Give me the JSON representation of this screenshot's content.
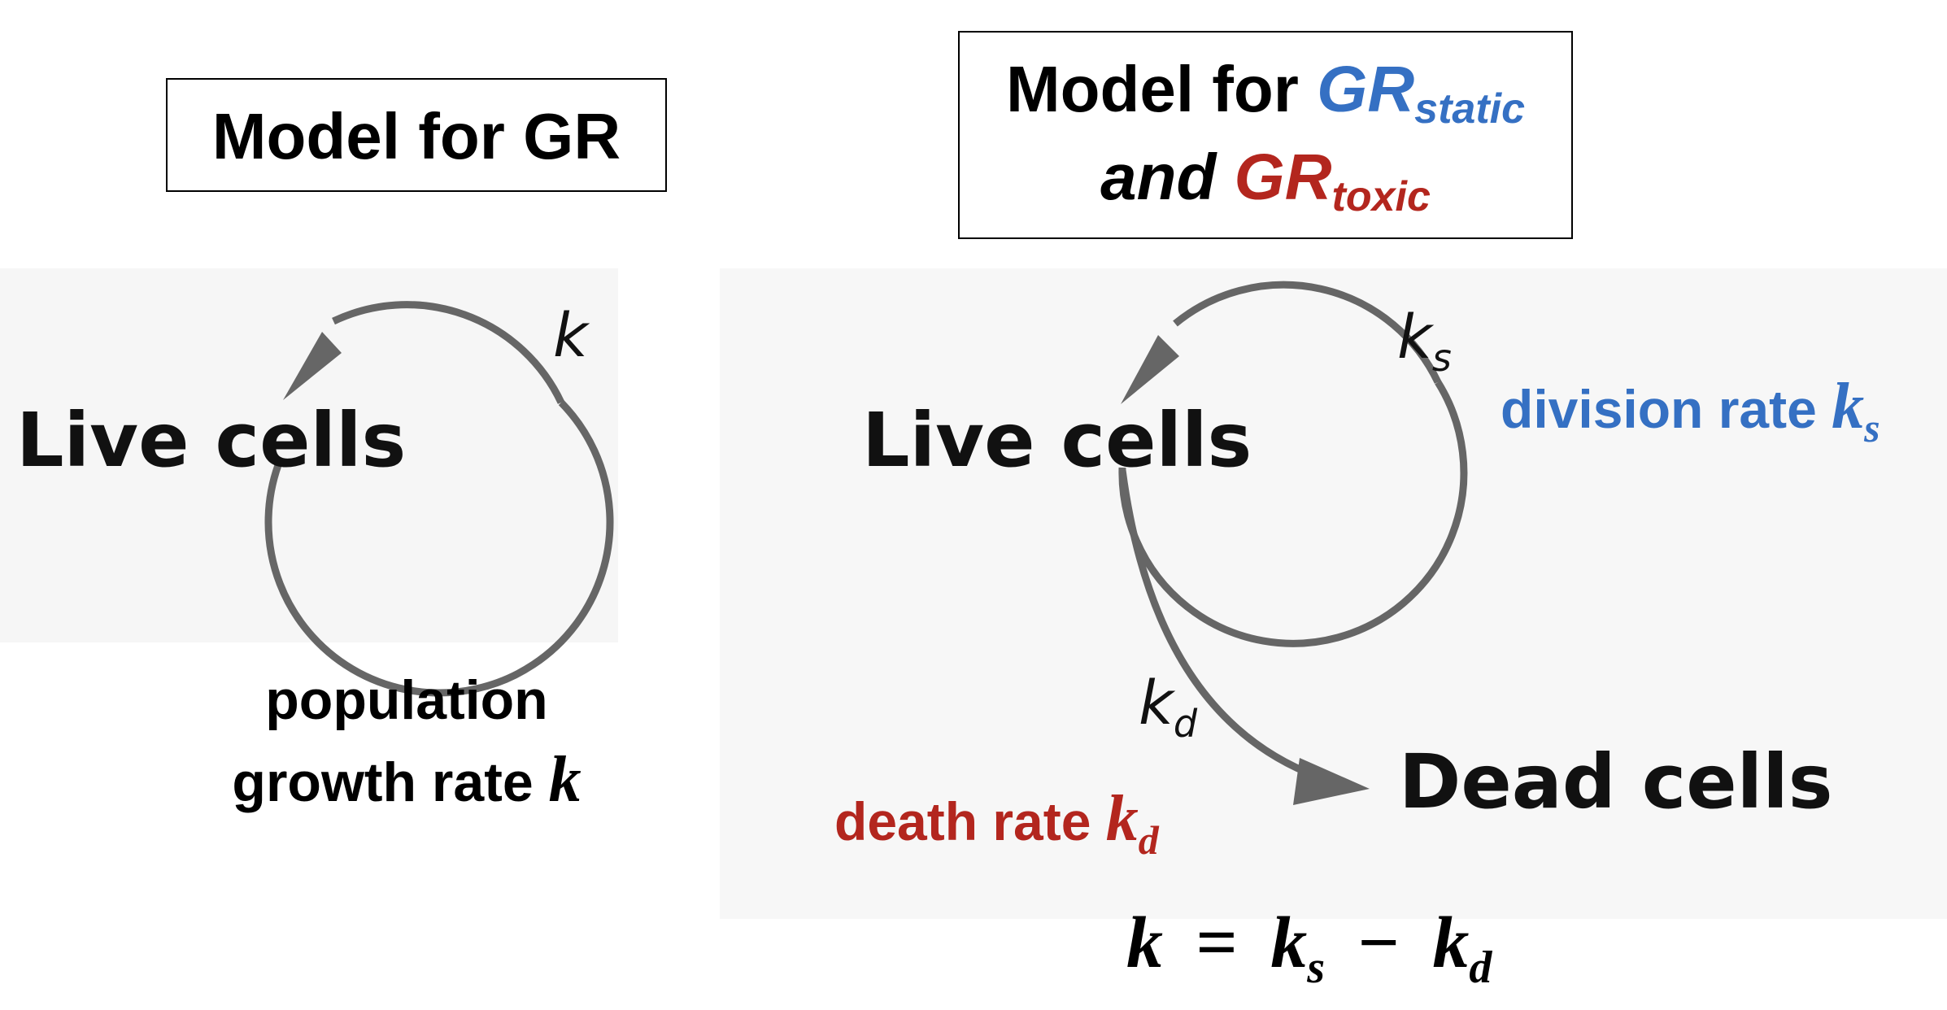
{
  "left_panel": {
    "title": "Model for GR",
    "node": "Live cells",
    "rate_symbol": "k",
    "caption_line1": "population",
    "caption_line2": "growth rate",
    "caption_var": "k"
  },
  "right_panel": {
    "title_prefix": "Model for",
    "title_gr1": "GR",
    "title_gr1_sub": "static",
    "title_and": "and",
    "title_gr2": "GR",
    "title_gr2_sub": "toxic",
    "node_live": "Live cells",
    "node_dead": "Dead cells",
    "ks_symbol": "k",
    "ks_sub": "s",
    "kd_symbol": "k",
    "kd_sub": "d",
    "division_label": "division rate",
    "division_var": "k",
    "division_sub": "s",
    "death_label": "death rate",
    "death_var": "k",
    "death_sub": "d"
  },
  "equation": {
    "lhs": "k",
    "eq": "=",
    "t1": "k",
    "t1_sub": "s",
    "minus": "−",
    "t2": "k",
    "t2_sub": "d"
  },
  "colors": {
    "blue": "#3570c3",
    "red": "#b3261e",
    "arrow": "#666666"
  }
}
